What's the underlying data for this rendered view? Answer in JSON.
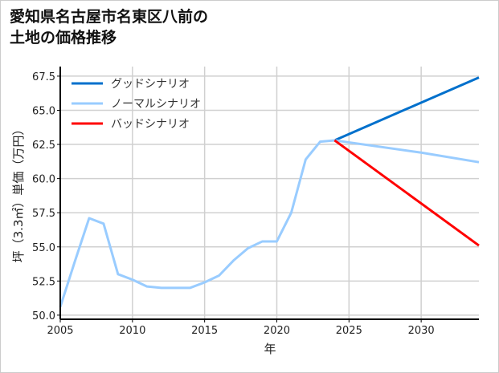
{
  "chart_data": {
    "type": "line",
    "title_lines": [
      "愛知県名古屋市名東区八前の",
      "土地の価格推移"
    ],
    "xlabel": "年",
    "ylabel": "坪（3.3㎡）単価（万円）",
    "xlim": [
      2005,
      2034
    ],
    "ylim": [
      49.7,
      68.2
    ],
    "xticks": [
      2005,
      2010,
      2015,
      2020,
      2025,
      2030
    ],
    "yticks": [
      50.0,
      52.5,
      55.0,
      57.5,
      60.0,
      62.5,
      65.0,
      67.5
    ],
    "grid": true,
    "legend_position": "top-left",
    "series": [
      {
        "name": "グッドシナリオ",
        "color": "#0070cc",
        "x": [
          2024,
          2034
        ],
        "y": [
          62.8,
          67.4
        ]
      },
      {
        "name": "ノーマルシナリオ",
        "color": "#99ccff",
        "x": [
          2005,
          2006,
          2007,
          2008,
          2009,
          2010,
          2011,
          2012,
          2013,
          2014,
          2015,
          2016,
          2017,
          2018,
          2019,
          2020,
          2021,
          2022,
          2023,
          2024,
          2030,
          2034
        ],
        "y": [
          50.6,
          53.9,
          57.1,
          56.7,
          53.0,
          52.6,
          52.1,
          52.0,
          52.0,
          52.0,
          52.4,
          52.9,
          54.0,
          54.9,
          55.4,
          55.4,
          57.5,
          61.4,
          62.7,
          62.8,
          61.9,
          61.2
        ]
      },
      {
        "name": "バッドシナリオ",
        "color": "#ff0000",
        "x": [
          2024,
          2034
        ],
        "y": [
          62.8,
          55.1
        ]
      }
    ]
  }
}
